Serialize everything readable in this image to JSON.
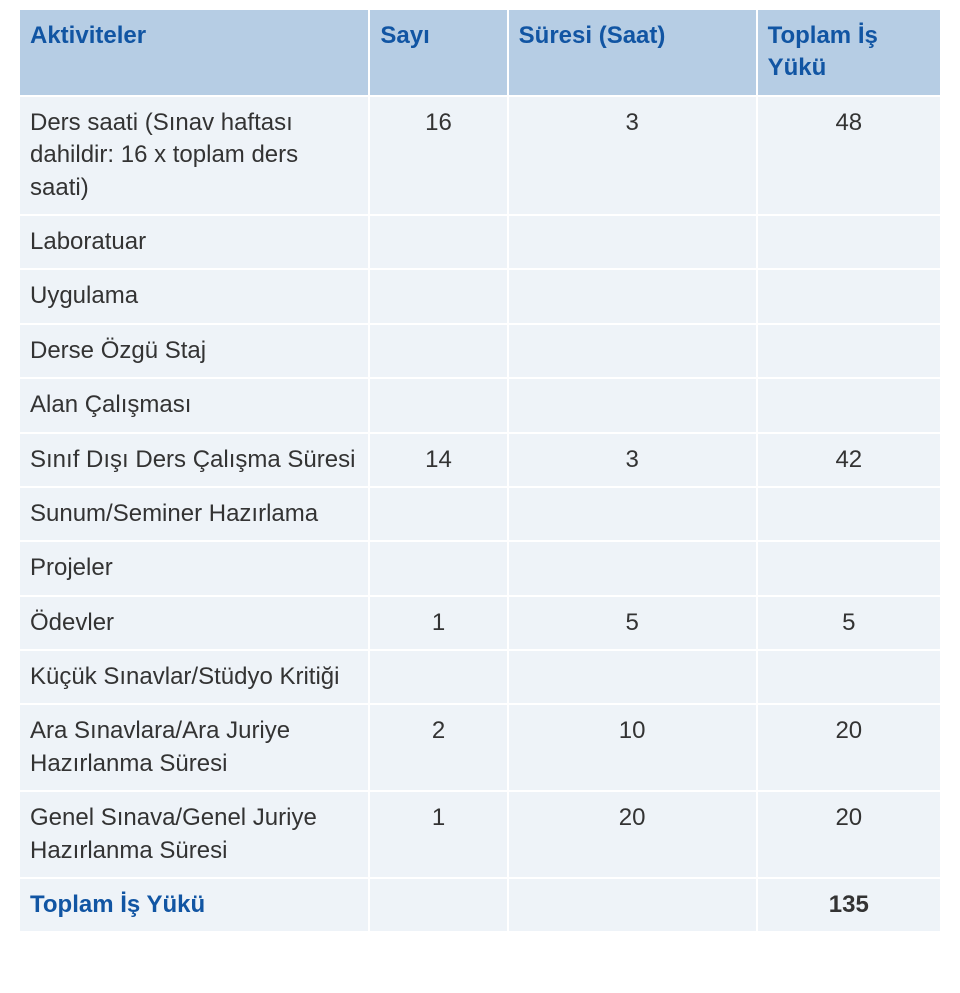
{
  "table": {
    "header": {
      "activity": "Aktiviteler",
      "count": "Sayı",
      "duration": "Süresi (Saat)",
      "total": "Toplam İş Yükü"
    },
    "rows": [
      {
        "activity": "Ders saati (Sınav haftası dahildir: 16 x toplam ders saati)",
        "count": "16",
        "duration": "3",
        "total": "48"
      },
      {
        "activity": "Laboratuar",
        "count": "",
        "duration": "",
        "total": ""
      },
      {
        "activity": "Uygulama",
        "count": "",
        "duration": "",
        "total": ""
      },
      {
        "activity": "Derse Özgü Staj",
        "count": "",
        "duration": "",
        "total": ""
      },
      {
        "activity": "Alan Çalışması",
        "count": "",
        "duration": "",
        "total": ""
      },
      {
        "activity": "Sınıf Dışı Ders Çalışma Süresi",
        "count": "14",
        "duration": "3",
        "total": "42"
      },
      {
        "activity": "Sunum/Seminer Hazırlama",
        "count": "",
        "duration": "",
        "total": ""
      },
      {
        "activity": "Projeler",
        "count": "",
        "duration": "",
        "total": ""
      },
      {
        "activity": "Ödevler",
        "count": "1",
        "duration": "5",
        "total": "5"
      },
      {
        "activity": "Küçük Sınavlar/Stüdyo Kritiği",
        "count": "",
        "duration": "",
        "total": ""
      },
      {
        "activity": "Ara Sınavlara/Ara Juriye Hazırlanma Süresi",
        "count": "2",
        "duration": "10",
        "total": "20"
      },
      {
        "activity": "Genel Sınava/Genel Juriye Hazırlanma Süresi",
        "count": "1",
        "duration": "20",
        "total": "20"
      }
    ],
    "footer": {
      "label": "Toplam İş Yükü",
      "value": "135"
    }
  },
  "style": {
    "header_bg": "#b6cde4",
    "header_fg": "#1155a3",
    "body_bg": "#eef3f8",
    "body_fg": "#333333",
    "border_color": "#ffffff",
    "accent_color": "#1155a3",
    "font_family": "Verdana, Geneva, sans-serif",
    "font_size_pt": 18,
    "column_widths_pct": [
      38,
      15,
      27,
      20
    ]
  }
}
